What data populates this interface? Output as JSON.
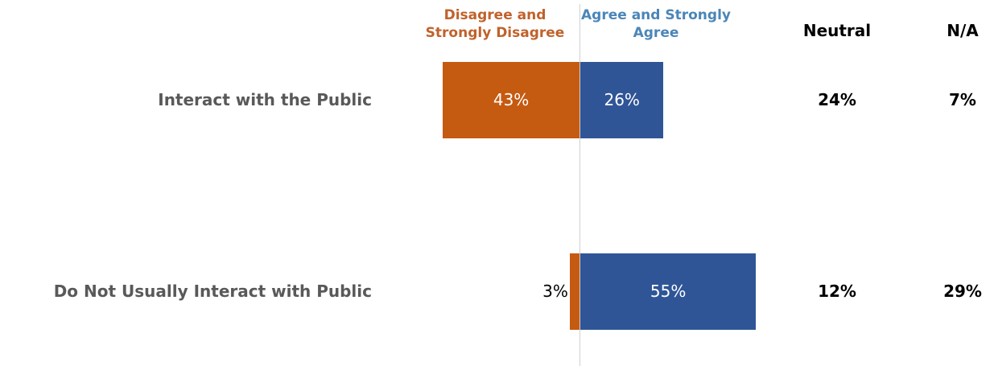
{
  "chart_data": {
    "type": "diverging_bar",
    "categories": [
      "Interact with the Public",
      "Do Not Usually Interact with Public"
    ],
    "series": [
      {
        "name": "Disagree and Strongly Disagree",
        "color": "#c55a11",
        "values": [
          43,
          3
        ],
        "value_labels": [
          "43%",
          "3%"
        ]
      },
      {
        "name": "Agree and Strongly Agree",
        "color": "#2f5597",
        "values": [
          26,
          55
        ],
        "value_labels": [
          "26%",
          "55%"
        ]
      }
    ],
    "columns": [
      {
        "name": "Neutral",
        "values": [
          24,
          12
        ],
        "value_labels": [
          "24%",
          "12%"
        ]
      },
      {
        "name": "N/A",
        "values": [
          7,
          29
        ],
        "value_labels": [
          "7%",
          "29%"
        ]
      }
    ]
  }
}
